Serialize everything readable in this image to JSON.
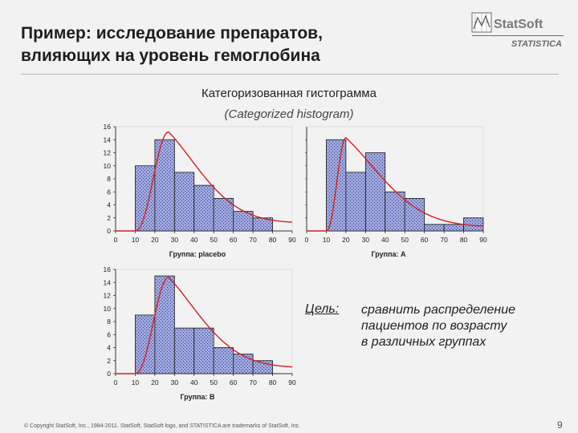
{
  "slide": {
    "title_line1": "Пример: исследование препаратов,",
    "title_line2": "влияющих на уровень гемоглобина",
    "subtitle": "Категоризованная гистограмма",
    "subtitle_en": "(Categorized histogram)",
    "goal_label": "Цель:",
    "goal_line1": "сравнить распределение",
    "goal_line2": "пациентов по возрасту",
    "goal_line3": "в различных группах",
    "footer": "© Copyright StatSoft, Inc., 1984-2011. StatSoft, StatSoft logo, and STATISTICA are trademarks of StatSoft, Inc.",
    "page_number": "9"
  },
  "logo": {
    "brand": "StatSoft",
    "product": "STATISTICA"
  },
  "colors": {
    "bar_fill": "#9ea7dd",
    "bar_stroke": "#1a1a1a",
    "curve": "#d42020",
    "axis": "#333333"
  },
  "chart_data": [
    {
      "type": "bar",
      "title": "Группа: placebo",
      "x": [
        10,
        20,
        30,
        40,
        50,
        60,
        70
      ],
      "values": [
        10,
        14,
        9,
        7,
        5,
        3,
        2
      ],
      "bin_width": 10,
      "xticks": [
        0,
        10,
        20,
        30,
        40,
        50,
        60,
        70,
        80,
        90
      ],
      "yticks": [
        0,
        2,
        4,
        6,
        8,
        10,
        12,
        14,
        16
      ],
      "xlim": [
        0,
        90
      ],
      "ylim": [
        0,
        16
      ],
      "fit_curve": {
        "start": 10,
        "peak_x": 27,
        "peak_y": 15.2,
        "end_y": 1.2
      }
    },
    {
      "type": "bar",
      "title": "Группа: A",
      "x": [
        10,
        20,
        30,
        40,
        50,
        60,
        70,
        80
      ],
      "values": [
        14,
        9,
        12,
        6,
        5,
        1,
        1,
        2
      ],
      "bin_width": 10,
      "xticks": [
        0,
        10,
        20,
        30,
        40,
        50,
        60,
        70,
        80,
        90
      ],
      "yticks": [],
      "xlim": [
        0,
        90
      ],
      "ylim": [
        0,
        16
      ],
      "fit_curve": {
        "start": 10,
        "peak_x": 20,
        "peak_y": 14.3,
        "end_y": 0.6
      }
    },
    {
      "type": "bar",
      "title": "Группа: B",
      "x": [
        10,
        20,
        30,
        40,
        50,
        60,
        70
      ],
      "values": [
        9,
        15,
        7,
        7,
        4,
        3,
        2
      ],
      "bin_width": 10,
      "xticks": [
        0,
        10,
        20,
        30,
        40,
        50,
        60,
        70,
        80,
        90
      ],
      "yticks": [
        0,
        2,
        4,
        6,
        8,
        10,
        12,
        14,
        16
      ],
      "xlim": [
        0,
        90
      ],
      "ylim": [
        0,
        16
      ],
      "fit_curve": {
        "start": 10,
        "peak_x": 27,
        "peak_y": 14.8,
        "end_y": 0.9
      }
    }
  ]
}
